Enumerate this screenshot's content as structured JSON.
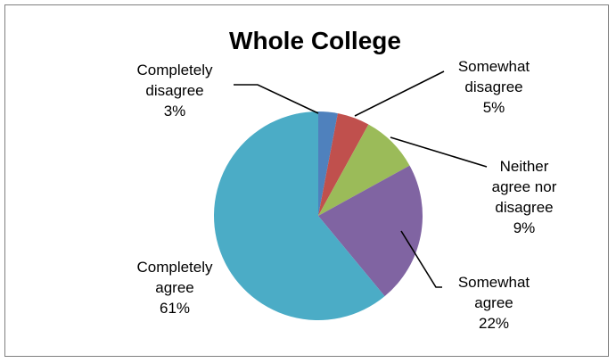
{
  "chart_data": {
    "type": "pie",
    "title": "Whole College",
    "slices": [
      {
        "label": [
          "Completely",
          "disagree"
        ],
        "value": 3,
        "percent_label": "3%",
        "color": "#4f81bd"
      },
      {
        "label": [
          "Somewhat",
          "disagree"
        ],
        "value": 5,
        "percent_label": "5%",
        "color": "#c0504d"
      },
      {
        "label": [
          "Neither",
          "agree nor",
          "disagree"
        ],
        "value": 9,
        "percent_label": "9%",
        "color": "#9bbb59"
      },
      {
        "label": [
          "Somewhat",
          "agree"
        ],
        "value": 22,
        "percent_label": "22%",
        "color": "#8064a2"
      },
      {
        "label": [
          "Completely",
          "agree"
        ],
        "value": 61,
        "percent_label": "61%",
        "color": "#4bacc6"
      }
    ],
    "legend": "none",
    "data_labels": "outside with leader lines"
  }
}
